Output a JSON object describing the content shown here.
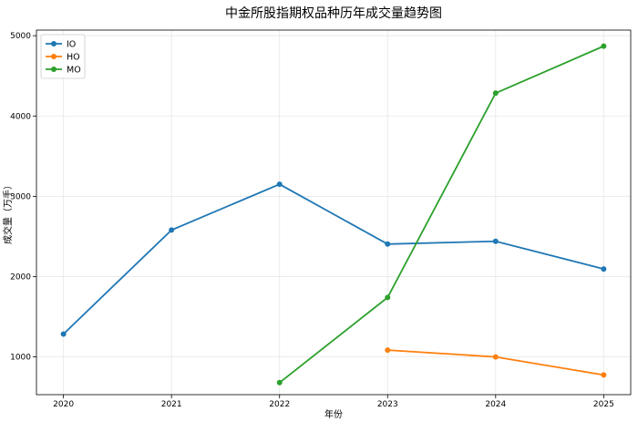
{
  "chart_data": {
    "type": "line",
    "title": "中金所股指期权品种历年成交量趋势图",
    "xlabel": "年份",
    "ylabel": "成交量（万手）",
    "x": [
      2020,
      2021,
      2022,
      2023,
      2024,
      2025
    ],
    "xlim": [
      2019.75,
      2025.25
    ],
    "ylim": [
      530,
      5070
    ],
    "yticks": [
      1000,
      2000,
      3000,
      4000,
      5000
    ],
    "grid": true,
    "legend_position": "top-left",
    "series": [
      {
        "name": "IO",
        "color": "#1f77b4",
        "values": [
          1285,
          2580,
          3150,
          2405,
          2440,
          2095
        ]
      },
      {
        "name": "HO",
        "color": "#ff7f0e",
        "values": [
          null,
          null,
          null,
          1085,
          1000,
          775
        ]
      },
      {
        "name": "MO",
        "color": "#2ca02c",
        "values": [
          null,
          null,
          680,
          1740,
          4285,
          4870
        ]
      }
    ]
  }
}
